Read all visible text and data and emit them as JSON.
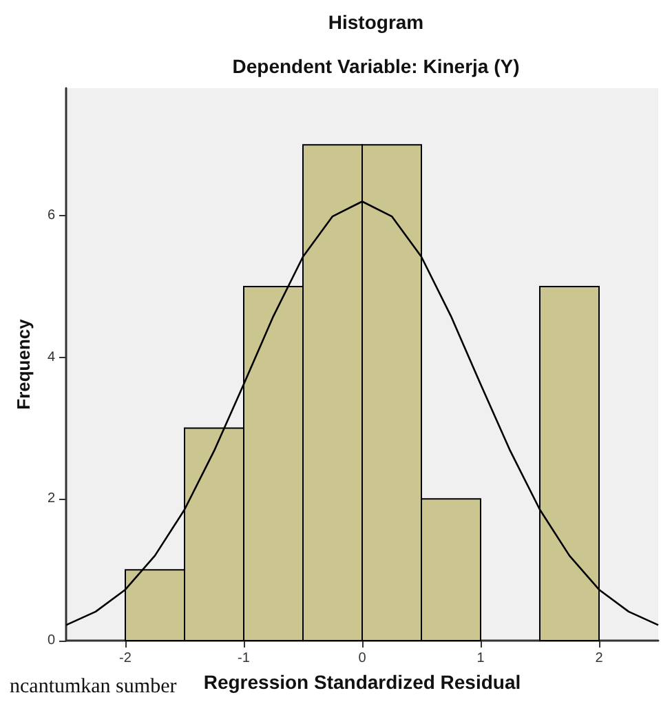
{
  "chart_data": {
    "type": "histogram",
    "title": "Histogram",
    "subtitle": "Dependent Variable: Kinerja (Y)",
    "xlabel": "Regression Standardized Residual",
    "ylabel": "Frequency",
    "annotations": [
      "ncantumkan sumber"
    ],
    "series": [
      {
        "color": "#cbc690",
        "bins": [
          -2,
          -1.5,
          -1,
          -0.5,
          0,
          0.5,
          1,
          1.5,
          2
        ],
        "values": [
          1,
          3,
          5,
          7,
          7,
          2,
          0,
          5
        ]
      },
      {
        "type": "line",
        "color": "#000000",
        "x": [
          -2.5,
          -2.25,
          -2,
          -1.75,
          -1.5,
          -1.25,
          -1,
          -0.75,
          -0.5,
          -0.25,
          0,
          0.25,
          0.5,
          0.75,
          1,
          1.25,
          1.5,
          1.75,
          2,
          2.25,
          2.5
        ],
        "values": [
          0.22,
          0.41,
          0.72,
          1.2,
          1.85,
          2.68,
          3.62,
          4.58,
          5.42,
          5.99,
          6.2,
          5.99,
          5.42,
          4.58,
          3.62,
          2.68,
          1.85,
          1.2,
          0.72,
          0.41,
          0.22
        ]
      }
    ],
    "xlim": [
      -2.5,
      2.5
    ],
    "xticks": [
      -2,
      -1,
      0,
      1,
      2
    ],
    "ylim": [
      0,
      7.8
    ],
    "yticks": [
      0,
      2,
      4,
      6
    ],
    "grid": false,
    "marker": "none"
  }
}
